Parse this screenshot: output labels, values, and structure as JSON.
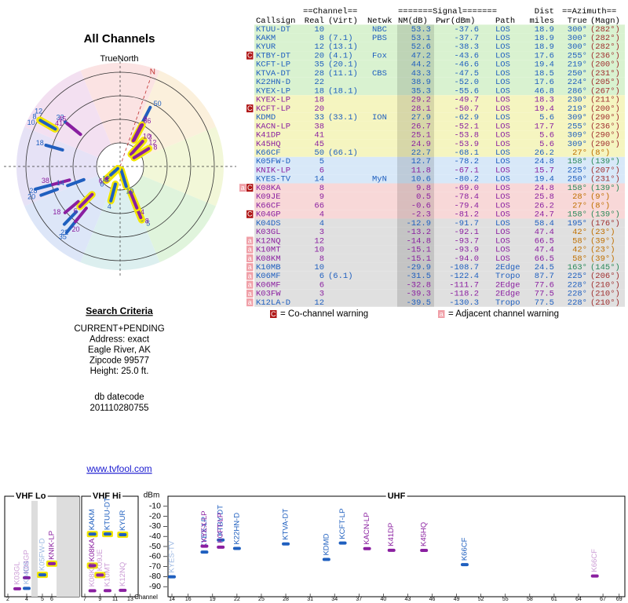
{
  "left": {
    "title": "All Channels",
    "north_label": "TrueNorth",
    "n": "N",
    "criteria_title": "Search Criteria",
    "criteria": [
      "CURRENT+PENDING",
      "Address: exact",
      "Eagle River, AK",
      "Zipcode 99577",
      "Height: 25.0 ft."
    ],
    "db_label": "db datecode",
    "db_code": "201110280755",
    "link": "www.tvfool.com"
  },
  "table": {
    "group_headers": [
      "==Channel==",
      "=======Signal=======",
      "Dist",
      "==Azimuth=="
    ],
    "headers": [
      "Callsign",
      "Real",
      "(Virt)",
      "Netwk",
      "NM(dB)",
      "Pwr(dBm)",
      "Path",
      "miles",
      "True",
      "(Magn)"
    ],
    "rows": [
      {
        "callsign": "KTUU-DT",
        "real": 10,
        "netwk": "NBC",
        "nm": 53.3,
        "pwr": -37.6,
        "path": "LOS",
        "dist": 18.9,
        "true": {
          "value": 300,
          "label": "300°"
        },
        "magn": "(282°)",
        "warn": [],
        "bg": "#d9f2d0",
        "fg": "#1f5fbf",
        "az": [
          "#1f5fbf",
          "#a03030"
        ]
      },
      {
        "callsign": "KAKM",
        "real": 8,
        "virt": "(7.1)",
        "netwk": "PBS",
        "nm": 53.1,
        "pwr": -37.7,
        "path": "LOS",
        "dist": 18.9,
        "true": {
          "value": 300,
          "label": "300°"
        },
        "magn": "(282°)",
        "warn": [],
        "bg": "#d9f2d0",
        "fg": "#1f5fbf",
        "az": [
          "#1f5fbf",
          "#a03030"
        ]
      },
      {
        "callsign": "KYUR",
        "real": 12,
        "virt": "(13.1)",
        "nm": 52.6,
        "pwr": -38.3,
        "path": "LOS",
        "dist": 18.9,
        "true": {
          "value": 300,
          "label": "300°"
        },
        "magn": "(282°)",
        "warn": [],
        "bg": "#d9f2d0",
        "fg": "#1f5fbf",
        "az": [
          "#1f5fbf",
          "#a03030"
        ]
      },
      {
        "callsign": "KTBY-DT",
        "real": 20,
        "virt": "(4.1)",
        "netwk": "Fox",
        "nm": 47.2,
        "pwr": -43.6,
        "path": "LOS",
        "dist": 17.6,
        "true": {
          "value": 255,
          "label": "255°"
        },
        "magn": "(236°)",
        "warn": [
          "C"
        ],
        "bg": "#d9f2d0",
        "fg": "#1f5fbf",
        "az": [
          "#1f5fbf",
          "#a03030"
        ]
      },
      {
        "callsign": "KCFT-LP",
        "real": 35,
        "virt": "(20.1)",
        "nm": 44.2,
        "pwr": -46.6,
        "path": "LOS",
        "dist": 19.4,
        "true": {
          "value": 219,
          "label": "219°"
        },
        "magn": "(200°)",
        "warn": [],
        "bg": "#d9f2d0",
        "fg": "#1f5fbf",
        "az": [
          "#1f5fbf",
          "#a03030"
        ]
      },
      {
        "callsign": "KTVA-DT",
        "real": 28,
        "virt": "(11.1)",
        "netwk": "CBS",
        "nm": 43.3,
        "pwr": -47.5,
        "path": "LOS",
        "dist": 18.5,
        "true": {
          "value": 250,
          "label": "250°"
        },
        "magn": "(231°)",
        "warn": [],
        "bg": "#d9f2d0",
        "fg": "#1f5fbf",
        "az": [
          "#1f5fbf",
          "#a03030"
        ]
      },
      {
        "callsign": "K22HN-D",
        "real": 22,
        "nm": 38.9,
        "pwr": -52.0,
        "path": "LOS",
        "dist": 17.6,
        "true": {
          "value": 224,
          "label": "224°"
        },
        "magn": "(205°)",
        "warn": [],
        "bg": "#d9f2d0",
        "fg": "#1f5fbf",
        "az": [
          "#1f5fbf",
          "#a03030"
        ]
      },
      {
        "callsign": "KYEX-LP",
        "real": 18,
        "virt": "(18.1)",
        "nm": 35.3,
        "pwr": -55.6,
        "path": "LOS",
        "dist": 46.8,
        "true": {
          "value": 286,
          "label": "286°"
        },
        "magn": "(267°)",
        "warn": [],
        "bg": "#d9f2d0",
        "fg": "#1f5fbf",
        "az": [
          "#1f5fbf",
          "#a03030"
        ]
      },
      {
        "callsign": "KYEX-LP",
        "real": 18,
        "nm": 29.2,
        "pwr": -49.7,
        "path": "LOS",
        "dist": 18.3,
        "true": {
          "value": 230,
          "label": "230°"
        },
        "magn": "(211°)",
        "warn": [],
        "bg": "#f5f5c0",
        "fg": "#8a1fa0",
        "az": [
          "#1f5fbf",
          "#a03030"
        ]
      },
      {
        "callsign": "KCFT-LP",
        "real": 20,
        "nm": 28.1,
        "pwr": -50.7,
        "path": "LOS",
        "dist": 19.4,
        "true": {
          "value": 219,
          "label": "219°"
        },
        "magn": "(200°)",
        "warn": [
          "C"
        ],
        "bg": "#f5f5c0",
        "fg": "#8a1fa0",
        "az": [
          "#1f5fbf",
          "#a03030"
        ]
      },
      {
        "callsign": "KDMD",
        "real": 33,
        "virt": "(33.1)",
        "netwk": "ION",
        "nm": 27.9,
        "pwr": -62.9,
        "path": "LOS",
        "dist": 5.6,
        "true": {
          "value": 309,
          "label": "309°"
        },
        "magn": "(290°)",
        "warn": [],
        "bg": "#f5f5c0",
        "fg": "#1f5fbf",
        "az": [
          "#1f5fbf",
          "#a03030"
        ]
      },
      {
        "callsign": "KACN-LP",
        "real": 38,
        "nm": 26.7,
        "pwr": -52.1,
        "path": "LOS",
        "dist": 17.7,
        "true": {
          "value": 255,
          "label": "255°"
        },
        "magn": "(236°)",
        "warn": [],
        "bg": "#f5f5c0",
        "fg": "#8a1fa0",
        "az": [
          "#1f5fbf",
          "#a03030"
        ]
      },
      {
        "callsign": "K41DP",
        "real": 41,
        "nm": 25.1,
        "pwr": -53.8,
        "path": "LOS",
        "dist": 5.6,
        "true": {
          "value": 309,
          "label": "309°"
        },
        "magn": "(290°)",
        "warn": [],
        "bg": "#f5f5c0",
        "fg": "#8a1fa0",
        "az": [
          "#1f5fbf",
          "#a03030"
        ]
      },
      {
        "callsign": "K45HQ",
        "real": 45,
        "nm": 24.9,
        "pwr": -53.9,
        "path": "LOS",
        "dist": 5.6,
        "true": {
          "value": 309,
          "label": "309°"
        },
        "magn": "(290°)",
        "warn": [],
        "bg": "#f5f5c0",
        "fg": "#8a1fa0",
        "az": [
          "#1f5fbf",
          "#a03030"
        ]
      },
      {
        "callsign": "K66CF",
        "real": 50,
        "virt": "(66.1)",
        "nm": 22.7,
        "pwr": -68.1,
        "path": "LOS",
        "dist": 26.2,
        "true": {
          "value": 27,
          "label": "27°"
        },
        "magn": "(8°)",
        "warn": [],
        "bg": "#f5f5c0",
        "fg": "#1f5fbf",
        "az": [
          "#c07000",
          "#c07000"
        ]
      },
      {
        "callsign": "K05FW-D",
        "real": 5,
        "nm": 12.7,
        "pwr": -78.2,
        "path": "LOS",
        "dist": 24.8,
        "true": {
          "value": 158,
          "label": "158°"
        },
        "magn": "(139°)",
        "warn": [],
        "bg": "#d8e8f8",
        "fg": "#1f5fbf",
        "az": [
          "#2a8a5a",
          "#2a8a5a"
        ]
      },
      {
        "callsign": "KNIK-LP",
        "real": 6,
        "nm": 11.8,
        "pwr": -67.1,
        "path": "LOS",
        "dist": 15.7,
        "true": {
          "value": 225,
          "label": "225°"
        },
        "magn": "(207°)",
        "warn": [],
        "bg": "#d8e8f8",
        "fg": "#8a1fa0",
        "az": [
          "#1f5fbf",
          "#a03030"
        ]
      },
      {
        "callsign": "KYES-TV",
        "real": 14,
        "netwk": "MyN",
        "nm": 10.6,
        "pwr": -80.2,
        "path": "LOS",
        "dist": 19.4,
        "true": {
          "value": 250,
          "label": "250°"
        },
        "magn": "(231°)",
        "warn": [],
        "bg": "#d8e8f8",
        "fg": "#1f5fbf",
        "az": [
          "#1f5fbf",
          "#a03030"
        ]
      },
      {
        "callsign": "K08KA",
        "real": 8,
        "nm": 9.8,
        "pwr": -69.0,
        "path": "LOS",
        "dist": 24.8,
        "true": {
          "value": 158,
          "label": "158°"
        },
        "magn": "(139°)",
        "warn": [
          "a",
          "C"
        ],
        "bg": "#f8d8d8",
        "fg": "#8a1fa0",
        "az": [
          "#2a8a5a",
          "#2a8a5a"
        ]
      },
      {
        "callsign": "K09JE",
        "real": 9,
        "nm": 0.5,
        "pwr": -78.4,
        "path": "LOS",
        "dist": 25.8,
        "true": {
          "value": 28,
          "label": "28°"
        },
        "magn": "(9°)",
        "warn": [],
        "bg": "#f8d8d8",
        "fg": "#8a1fa0",
        "az": [
          "#c07000",
          "#c07000"
        ]
      },
      {
        "callsign": "K66CF",
        "real": 66,
        "nm": -0.6,
        "pwr": -79.4,
        "path": "LOS",
        "dist": 26.2,
        "true": {
          "value": 27,
          "label": "27°"
        },
        "magn": "(8°)",
        "warn": [],
        "bg": "#f8d8d8",
        "fg": "#8a1fa0",
        "az": [
          "#c07000",
          "#c07000"
        ]
      },
      {
        "callsign": "K04GP",
        "real": 4,
        "nm": -2.3,
        "pwr": -81.2,
        "path": "LOS",
        "dist": 24.7,
        "true": {
          "value": 158,
          "label": "158°"
        },
        "magn": "(139°)",
        "warn": [
          "C"
        ],
        "bg": "#f8d8d8",
        "fg": "#8a1fa0",
        "az": [
          "#2a8a5a",
          "#2a8a5a"
        ]
      },
      {
        "callsign": "K04DS",
        "real": 4,
        "nm": -12.9,
        "pwr": -91.7,
        "path": "LOS",
        "dist": 58.4,
        "true": {
          "value": 195,
          "label": "195°"
        },
        "magn": "(176°)",
        "warn": [],
        "bg": "#e0e0e0",
        "fg": "#1f5fbf",
        "az": [
          "#1f5fbf",
          "#a03030"
        ]
      },
      {
        "callsign": "K03GL",
        "real": 3,
        "nm": -13.2,
        "pwr": -92.1,
        "path": "LOS",
        "dist": 47.4,
        "true": {
          "value": 42,
          "label": "42°"
        },
        "magn": "(23°)",
        "warn": [],
        "bg": "#e0e0e0",
        "fg": "#8a1fa0",
        "az": [
          "#c07000",
          "#c07000"
        ]
      },
      {
        "callsign": "K12NQ",
        "real": 12,
        "nm": -14.8,
        "pwr": -93.7,
        "path": "LOS",
        "dist": 66.5,
        "true": {
          "value": 58,
          "label": "58°"
        },
        "magn": "(39°)",
        "warn": [
          "a"
        ],
        "bg": "#e0e0e0",
        "fg": "#8a1fa0",
        "az": [
          "#c07000",
          "#c07000"
        ]
      },
      {
        "callsign": "K10MT",
        "real": 10,
        "nm": -15.1,
        "pwr": -93.9,
        "path": "LOS",
        "dist": 47.4,
        "true": {
          "value": 42,
          "label": "42°"
        },
        "magn": "(23°)",
        "warn": [
          "a"
        ],
        "bg": "#e0e0e0",
        "fg": "#8a1fa0",
        "az": [
          "#c07000",
          "#c07000"
        ]
      },
      {
        "callsign": "K08KM",
        "real": 8,
        "nm": -15.1,
        "pwr": -94.0,
        "path": "LOS",
        "dist": 66.5,
        "true": {
          "value": 58,
          "label": "58°"
        },
        "magn": "(39°)",
        "warn": [
          "a"
        ],
        "bg": "#e0e0e0",
        "fg": "#8a1fa0",
        "az": [
          "#c07000",
          "#c07000"
        ]
      },
      {
        "callsign": "K10MB",
        "real": 10,
        "nm": -29.9,
        "pwr": -108.7,
        "path": "2Edge",
        "dist": 24.5,
        "true": {
          "value": 163,
          "label": "163°"
        },
        "magn": "(145°)",
        "warn": [
          "a"
        ],
        "bg": "#e0e0e0",
        "fg": "#1f5fbf",
        "az": [
          "#2a8a5a",
          "#2a8a5a"
        ]
      },
      {
        "callsign": "K06MF",
        "real": 6,
        "virt": "(6.1)",
        "nm": -31.5,
        "pwr": -122.4,
        "path": "Tropo",
        "dist": 87.7,
        "true": {
          "value": 225,
          "label": "225°"
        },
        "magn": "(206°)",
        "warn": [
          "a"
        ],
        "bg": "#e0e0e0",
        "fg": "#1f5fbf",
        "az": [
          "#1f5fbf",
          "#a03030"
        ]
      },
      {
        "callsign": "K06MF",
        "real": 6,
        "nm": -32.8,
        "pwr": -111.7,
        "path": "2Edge",
        "dist": 77.6,
        "true": {
          "value": 228,
          "label": "228°"
        },
        "magn": "(210°)",
        "warn": [
          "a"
        ],
        "bg": "#e0e0e0",
        "fg": "#8a1fa0",
        "az": [
          "#1f5fbf",
          "#a03030"
        ]
      },
      {
        "callsign": "K03FW",
        "real": 3,
        "nm": -39.3,
        "pwr": -118.2,
        "path": "2Edge",
        "dist": 77.5,
        "true": {
          "value": 228,
          "label": "228°"
        },
        "magn": "(210°)",
        "warn": [
          "a"
        ],
        "bg": "#e0e0e0",
        "fg": "#8a1fa0",
        "az": [
          "#1f5fbf",
          "#a03030"
        ]
      },
      {
        "callsign": "K12LA-D",
        "real": 12,
        "nm": -39.5,
        "pwr": -130.3,
        "path": "Tropo",
        "dist": 77.5,
        "true": {
          "value": 228,
          "label": "228°"
        },
        "magn": "(210°)",
        "warn": [
          "a"
        ],
        "bg": "#e0e0e0",
        "fg": "#1f5fbf",
        "az": [
          "#1f5fbf",
          "#a03030"
        ]
      }
    ]
  },
  "legend": [
    {
      "badge": "C",
      "text": "= Co-channel warning"
    },
    {
      "badge": "a",
      "text": "= Adjacent channel warning"
    }
  ],
  "spectrum": {
    "sections": [
      "VHF Lo",
      "VHF Hi",
      "UHF"
    ],
    "unit": "dBm",
    "x_label": "Channel",
    "ylim": [
      -100,
      0
    ],
    "yticks": [
      -10,
      -20,
      -30,
      -40,
      -50,
      -60,
      -70,
      -80,
      -90
    ],
    "xticks_lo": [
      2,
      4,
      5,
      6
    ],
    "xticks_hi": [
      7,
      9,
      11,
      13
    ],
    "xticks_uhf": [
      14,
      16,
      19,
      22,
      25,
      28,
      31,
      34,
      37,
      40,
      43,
      46,
      49,
      52,
      55,
      58,
      61,
      64,
      67,
      69
    ]
  }
}
